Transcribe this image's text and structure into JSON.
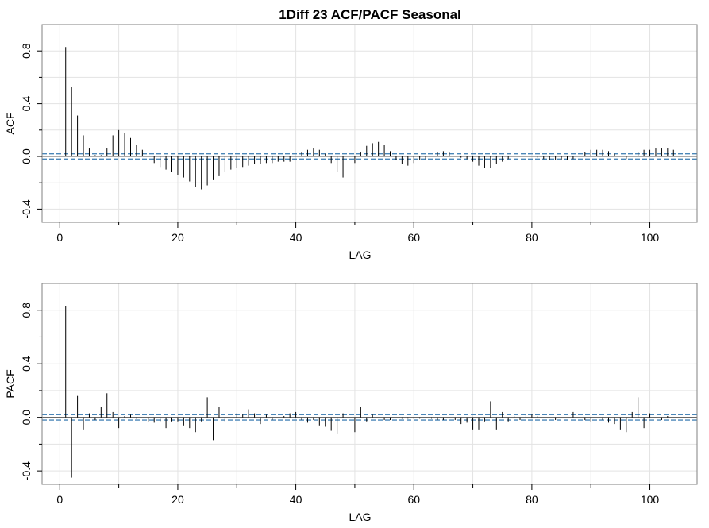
{
  "title": "1Diff 23  ACF/PACF Seasonal",
  "chart_data": [
    {
      "type": "bar",
      "name": "acf-panel",
      "ylabel": "ACF",
      "xlabel": "LAG",
      "xlim": [
        -3,
        108
      ],
      "ylim": [
        -0.5,
        1.0
      ],
      "xticks": [
        0,
        20,
        40,
        60,
        80,
        100
      ],
      "yticks": [
        -0.4,
        0.0,
        0.4,
        0.8
      ],
      "ytick_labels": [
        "-0.4",
        "0.0",
        "0.4",
        "0.8"
      ],
      "conf_band": [
        -0.02,
        0.02
      ],
      "grid": true,
      "lag": [
        1,
        2,
        3,
        4,
        5,
        6,
        7,
        8,
        9,
        10,
        11,
        12,
        13,
        14,
        15,
        16,
        17,
        18,
        19,
        20,
        21,
        22,
        23,
        24,
        25,
        26,
        27,
        28,
        29,
        30,
        31,
        32,
        33,
        34,
        35,
        36,
        37,
        38,
        39,
        40,
        41,
        42,
        43,
        44,
        45,
        46,
        47,
        48,
        49,
        50,
        51,
        52,
        53,
        54,
        55,
        56,
        57,
        58,
        59,
        60,
        61,
        62,
        63,
        64,
        65,
        66,
        67,
        68,
        69,
        70,
        71,
        72,
        73,
        74,
        75,
        76,
        77,
        78,
        79,
        80,
        81,
        82,
        83,
        84,
        85,
        86,
        87,
        88,
        89,
        90,
        91,
        92,
        93,
        94,
        95,
        96,
        97,
        98,
        99,
        100,
        101,
        102,
        103,
        104
      ],
      "values": [
        0.83,
        0.53,
        0.31,
        0.16,
        0.06,
        0.01,
        0.01,
        0.06,
        0.16,
        0.2,
        0.18,
        0.14,
        0.09,
        0.05,
        0.0,
        -0.05,
        -0.08,
        -0.1,
        -0.12,
        -0.14,
        -0.16,
        -0.19,
        -0.23,
        -0.25,
        -0.22,
        -0.18,
        -0.15,
        -0.12,
        -0.1,
        -0.09,
        -0.08,
        -0.07,
        -0.06,
        -0.06,
        -0.05,
        -0.05,
        -0.04,
        -0.04,
        -0.04,
        0.0,
        0.03,
        0.05,
        0.06,
        0.05,
        0.02,
        -0.05,
        -0.12,
        -0.16,
        -0.12,
        -0.05,
        0.03,
        0.08,
        0.1,
        0.11,
        0.09,
        0.04,
        -0.03,
        -0.06,
        -0.07,
        -0.05,
        -0.03,
        -0.02,
        0.0,
        0.03,
        0.04,
        0.03,
        0.0,
        -0.01,
        -0.02,
        -0.04,
        -0.07,
        -0.09,
        -0.09,
        -0.06,
        -0.04,
        -0.02,
        0.0,
        0.0,
        0.0,
        0.0,
        -0.01,
        -0.02,
        -0.03,
        -0.03,
        -0.03,
        -0.03,
        -0.02,
        0.0,
        0.03,
        0.05,
        0.05,
        0.05,
        0.04,
        0.02,
        0.0,
        -0.02,
        0.0,
        0.03,
        0.05,
        0.05,
        0.06,
        0.06,
        0.06,
        0.05
      ]
    },
    {
      "type": "bar",
      "name": "pacf-panel",
      "ylabel": "PACF",
      "xlabel": "LAG",
      "xlim": [
        -3,
        108
      ],
      "ylim": [
        -0.5,
        1.0
      ],
      "xticks": [
        0,
        20,
        40,
        60,
        80,
        100
      ],
      "yticks": [
        -0.4,
        0.0,
        0.4,
        0.8
      ],
      "ytick_labels": [
        "-0.4",
        "0.0",
        "0.4",
        "0.8"
      ],
      "conf_band": [
        -0.02,
        0.02
      ],
      "grid": true,
      "lag": [
        1,
        2,
        3,
        4,
        5,
        6,
        7,
        8,
        9,
        10,
        11,
        12,
        13,
        14,
        15,
        16,
        17,
        18,
        19,
        20,
        21,
        22,
        23,
        24,
        25,
        26,
        27,
        28,
        29,
        30,
        31,
        32,
        33,
        34,
        35,
        36,
        37,
        38,
        39,
        40,
        41,
        42,
        43,
        44,
        45,
        46,
        47,
        48,
        49,
        50,
        51,
        52,
        53,
        54,
        55,
        56,
        57,
        58,
        59,
        60,
        61,
        62,
        63,
        64,
        65,
        66,
        67,
        68,
        69,
        70,
        71,
        72,
        73,
        74,
        75,
        76,
        77,
        78,
        79,
        80,
        81,
        82,
        83,
        84,
        85,
        86,
        87,
        88,
        89,
        90,
        91,
        92,
        93,
        94,
        95,
        96,
        97,
        98,
        99,
        100,
        101,
        102,
        103,
        104
      ],
      "values": [
        0.83,
        -0.45,
        0.16,
        -0.09,
        0.03,
        -0.02,
        0.08,
        0.18,
        0.04,
        -0.08,
        0.01,
        0.02,
        -0.01,
        0.0,
        -0.03,
        -0.04,
        -0.03,
        -0.08,
        -0.03,
        -0.03,
        -0.06,
        -0.08,
        -0.11,
        -0.03,
        0.15,
        -0.17,
        0.08,
        -0.03,
        0.0,
        0.03,
        0.02,
        0.06,
        0.03,
        -0.05,
        0.02,
        -0.02,
        0.0,
        0.01,
        0.03,
        0.04,
        -0.02,
        -0.04,
        -0.02,
        -0.06,
        -0.07,
        -0.1,
        -0.12,
        0.03,
        0.18,
        -0.11,
        0.08,
        -0.03,
        0.02,
        0.0,
        -0.02,
        -0.02,
        0.0,
        -0.01,
        -0.01,
        -0.01,
        -0.01,
        0.0,
        -0.01,
        -0.02,
        -0.02,
        0.0,
        -0.02,
        -0.05,
        -0.04,
        -0.09,
        -0.09,
        -0.03,
        0.12,
        -0.09,
        0.04,
        -0.03,
        0.01,
        -0.02,
        0.02,
        0.02,
        0.01,
        0.0,
        0.0,
        -0.02,
        0.0,
        0.0,
        0.04,
        0.0,
        -0.02,
        -0.03,
        0.0,
        -0.02,
        -0.04,
        -0.05,
        -0.09,
        -0.11,
        0.04,
        0.15,
        -0.08,
        0.03,
        0.0,
        -0.02,
        0.01,
        0.0
      ]
    }
  ]
}
